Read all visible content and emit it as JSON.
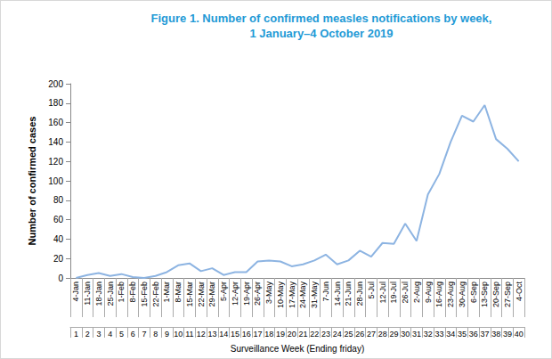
{
  "chart_data": {
    "type": "line",
    "title": "Figure 1. Number of confirmed measles notifications by week,\n1 January–4 October 2019",
    "y_label": "Number of confirmed cases",
    "x_label": "Surveillance Week (Ending friday)",
    "categories": [
      "4-Jan",
      "11-Jan",
      "18-Jan",
      "25-Jan",
      "1-Feb",
      "8-Feb",
      "15-Feb",
      "22-Feb",
      "1-Mar",
      "8-Mar",
      "15-Mar",
      "22-Mar",
      "29-Mar",
      "5-Apr",
      "12-Apr",
      "19-Apr",
      "26-Apr",
      "3-May",
      "10-May",
      "17-May",
      "24-May",
      "31-May",
      "7-Jun",
      "14-Jun",
      "21-Jun",
      "28-Jun",
      "5-Jul",
      "12-Jul",
      "19-Jul",
      "26-Jul",
      "2-Aug",
      "9-Aug",
      "16-Aug",
      "23-Aug",
      "30-Aug",
      "6-Sep",
      "13-Sep",
      "20-Sep",
      "27-Sep",
      "4-Oct"
    ],
    "week_numbers": [
      1,
      2,
      3,
      4,
      5,
      6,
      7,
      8,
      9,
      10,
      11,
      12,
      13,
      14,
      15,
      16,
      17,
      18,
      19,
      20,
      21,
      22,
      23,
      24,
      25,
      26,
      27,
      28,
      29,
      30,
      31,
      32,
      33,
      34,
      35,
      36,
      37,
      38,
      39,
      40
    ],
    "values": [
      0,
      3,
      5,
      2,
      4,
      1,
      0,
      2,
      6,
      13,
      15,
      7,
      10,
      3,
      6,
      6,
      17,
      18,
      17,
      12,
      14,
      18,
      24,
      14,
      18,
      28,
      22,
      36,
      35,
      56,
      38,
      86,
      107,
      140,
      167,
      161,
      178,
      143,
      133,
      120
    ],
    "color": "#8db4e2",
    "marker": "none",
    "ylim": [
      0,
      200
    ],
    "yticks": [
      0,
      20,
      40,
      60,
      80,
      100,
      120,
      140,
      160,
      180,
      200
    ],
    "grid": false
  }
}
